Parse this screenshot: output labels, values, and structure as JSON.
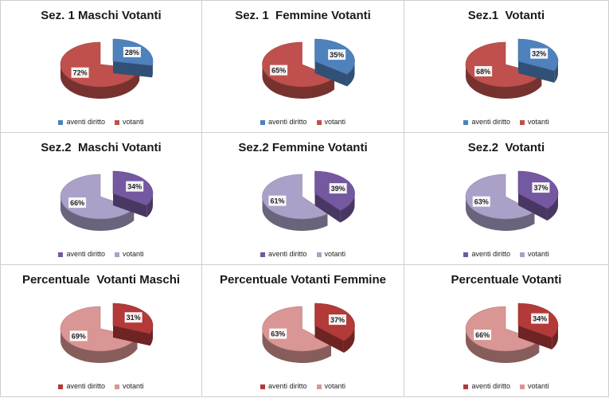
{
  "chart_data": [
    {
      "type": "pie",
      "title": "Sez. 1 Maschi Votanti",
      "labels": [
        "aventi diritto",
        "votanti"
      ],
      "values": [
        28,
        72
      ],
      "display": [
        "28%",
        "72%"
      ],
      "colors": [
        "#4f81bd",
        "#c0504d"
      ]
    },
    {
      "type": "pie",
      "title": "Sez. 1  Femmine Votanti",
      "labels": [
        "aventi diritto",
        "votanti"
      ],
      "values": [
        35,
        65
      ],
      "display": [
        "35%",
        "65%"
      ],
      "colors": [
        "#4f81bd",
        "#c0504d"
      ]
    },
    {
      "type": "pie",
      "title": "Sez.1  Votanti",
      "labels": [
        "aventi diritto",
        "votanti"
      ],
      "values": [
        32,
        68
      ],
      "display": [
        "32%",
        "68%"
      ],
      "colors": [
        "#4f81bd",
        "#c0504d"
      ]
    },
    {
      "type": "pie",
      "title": "Sez.2  Maschi Votanti",
      "labels": [
        "aventi diritto",
        "votanti"
      ],
      "values": [
        34,
        66
      ],
      "display": [
        "34%",
        "66%"
      ],
      "colors": [
        "#7458a0",
        "#aba0c8"
      ]
    },
    {
      "type": "pie",
      "title": "Sez.2 Femmine Votanti",
      "labels": [
        "aventi diritto",
        "votanti"
      ],
      "values": [
        39,
        61
      ],
      "display": [
        "39%",
        "61%"
      ],
      "colors": [
        "#7458a0",
        "#aba0c8"
      ]
    },
    {
      "type": "pie",
      "title": "Sez.2  Votanti",
      "labels": [
        "aventi diritto",
        "votanti"
      ],
      "values": [
        37,
        63
      ],
      "display": [
        "37%",
        "63%"
      ],
      "colors": [
        "#7458a0",
        "#aba0c8"
      ]
    },
    {
      "type": "pie",
      "title": "Percentuale  Votanti Maschi",
      "labels": [
        "aventi diritto",
        "votanti"
      ],
      "values": [
        31,
        69
      ],
      "display": [
        "31%",
        "69%"
      ],
      "colors": [
        "#b23a38",
        "#d99694"
      ]
    },
    {
      "type": "pie",
      "title": "Percentuale Votanti Femmine",
      "labels": [
        "aventi diritto",
        "votanti"
      ],
      "values": [
        37,
        63
      ],
      "display": [
        "37%",
        "63%"
      ],
      "colors": [
        "#b23a38",
        "#d99694"
      ]
    },
    {
      "type": "pie",
      "title": "Percentuale Votanti",
      "labels": [
        "aventi diritto",
        "votanti"
      ],
      "values": [
        34,
        66
      ],
      "display": [
        "34%",
        "66%"
      ],
      "colors": [
        "#b23a38",
        "#d99694"
      ]
    }
  ]
}
